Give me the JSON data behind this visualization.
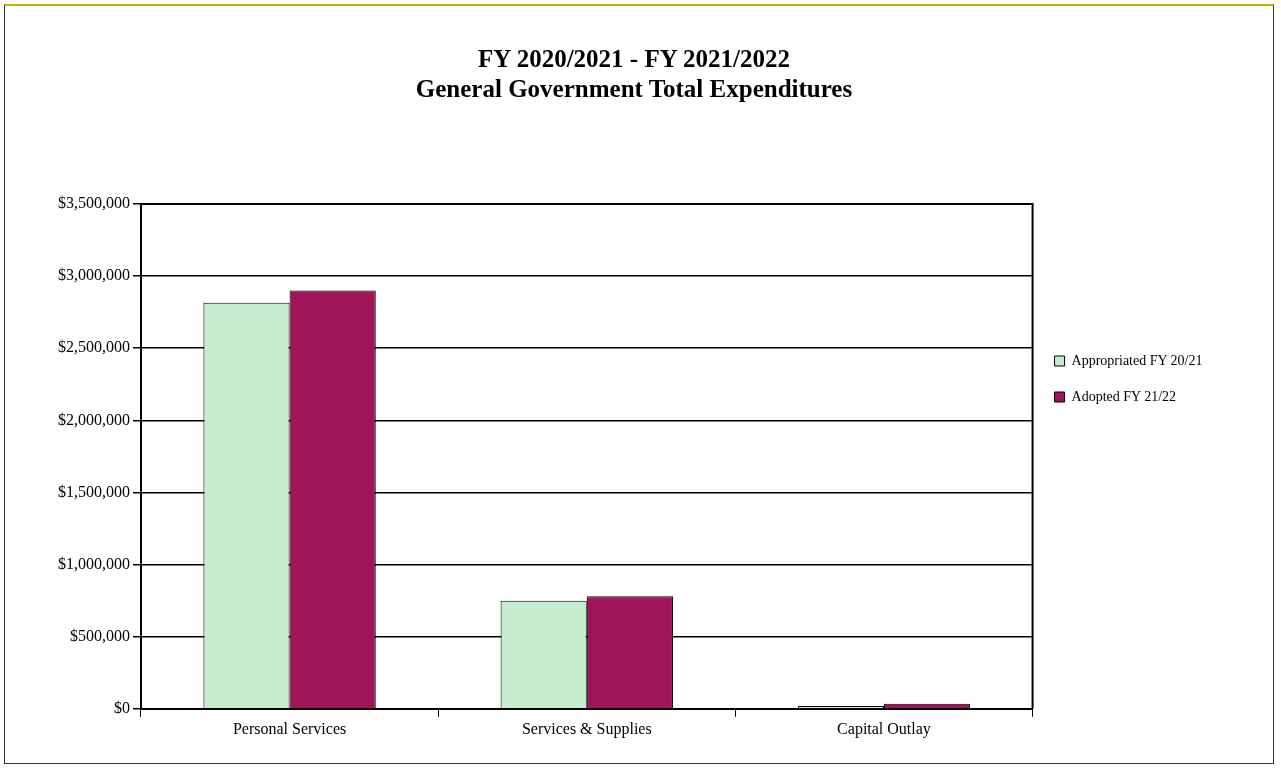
{
  "chart_data": {
    "type": "bar",
    "title": [
      "FY 2020/2021 - FY 2021/2022",
      "General Government Total Expenditures"
    ],
    "categories": [
      "Personal Services",
      "Services & Supplies",
      "Capital Outlay"
    ],
    "series": [
      {
        "name": "Appropriated FY 20/21",
        "color": "#c6ecd0",
        "values": [
          2815000,
          750000,
          20000
        ]
      },
      {
        "name": "Adopted FY 21/22",
        "color": "#a0155a",
        "values": [
          2900000,
          780000,
          35000
        ]
      }
    ],
    "ylim": [
      0,
      3500000
    ],
    "yticks": [
      {
        "value": 0,
        "label": "$0"
      },
      {
        "value": 500000,
        "label": "$500,000"
      },
      {
        "value": 1000000,
        "label": "$1,000,000"
      },
      {
        "value": 1500000,
        "label": "$1,500,000"
      },
      {
        "value": 2000000,
        "label": "$2,000,000"
      },
      {
        "value": 2500000,
        "label": "$2,500,000"
      },
      {
        "value": 3000000,
        "label": "$3,000,000"
      },
      {
        "value": 3500000,
        "label": "$3,500,000"
      }
    ],
    "grid": "y",
    "legend": "right"
  }
}
